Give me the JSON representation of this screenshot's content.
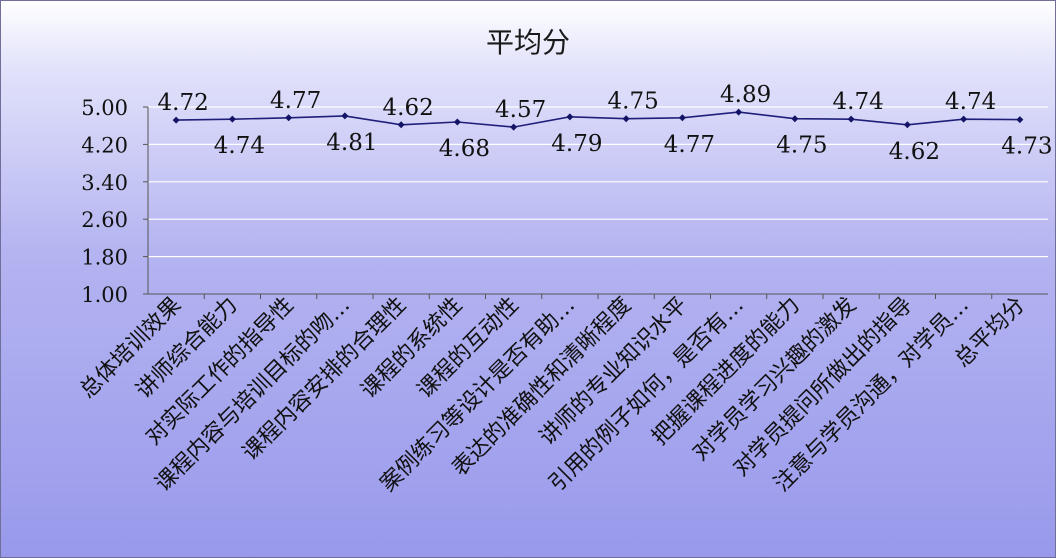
{
  "chart_data": {
    "type": "line",
    "title": "平均分",
    "xlabel": "",
    "ylabel": "",
    "ylim": [
      1.0,
      5.0
    ],
    "yticks": [
      "1.00",
      "1.80",
      "2.60",
      "3.40",
      "4.20",
      "5.00"
    ],
    "grid": true,
    "legend": "none",
    "categories": [
      "总体培训效果",
      "讲师综合能力",
      "对实际工作的指导性",
      "课程内容与培训目标的吻…",
      "课程内容安排的合理性",
      "课程的系统性",
      "课程的互动性",
      "案例练习等设计是否有助…",
      "表达的准确性和清晰程度",
      "讲师的专业知识水平",
      "引用的例子如何，是否有…",
      "把握课程进度的能力",
      "对学员学习兴趣的激发",
      "对学员提问所做出的指导",
      "注意与学员沟通，对学员…",
      "总平均分"
    ],
    "series": [
      {
        "values": [
          4.72,
          4.74,
          4.77,
          4.81,
          4.62,
          4.68,
          4.57,
          4.79,
          4.75,
          4.77,
          4.89,
          4.75,
          4.74,
          4.62,
          4.74,
          4.73
        ],
        "labels": [
          "4.72",
          "4.74",
          "4.77",
          "4.81",
          "4.62",
          "4.68",
          "4.57",
          "4.79",
          "4.75",
          "4.77",
          "4.89",
          "4.75",
          "4.74",
          "4.62",
          "4.74",
          "4.73"
        ]
      }
    ],
    "colors": {
      "line": "#1f1f7a",
      "marker": "#141466",
      "grid": "#ffffff",
      "axis": "#555555"
    }
  }
}
